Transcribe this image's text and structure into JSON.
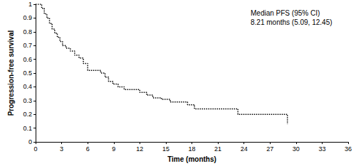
{
  "chart_data": {
    "type": "step",
    "x_label": "Time (months)",
    "y_label": "Progression-free survival",
    "annotation": [
      "Median PFS (95% CI)",
      "8.21 months (5.09, 12.45)"
    ],
    "x": [
      0,
      0.7,
      1.0,
      1.3,
      1.6,
      1.9,
      2.2,
      2.5,
      2.8,
      3.1,
      3.5,
      4.0,
      4.5,
      5.0,
      5.5,
      6.0,
      7.5,
      8.0,
      8.4,
      8.9,
      9.5,
      10.2,
      12.0,
      12.8,
      13.5,
      14.5,
      15.5,
      17.5,
      18.3,
      21.0,
      23.3,
      29.0
    ],
    "values": [
      1,
      0.97,
      0.93,
      0.9,
      0.86,
      0.82,
      0.79,
      0.76,
      0.73,
      0.7,
      0.68,
      0.66,
      0.63,
      0.61,
      0.57,
      0.52,
      0.5,
      0.47,
      0.44,
      0.42,
      0.4,
      0.38,
      0.36,
      0.34,
      0.32,
      0.31,
      0.29,
      0.27,
      0.24,
      0.24,
      0.2,
      0.13
    ],
    "color": "#000000",
    "line_style": "dotted",
    "xlim": [
      0,
      36
    ],
    "xticks": [
      0,
      3,
      6,
      9,
      12,
      15,
      18,
      21,
      24,
      27,
      30,
      33,
      36
    ],
    "ylim": [
      0,
      1
    ],
    "yticks": [
      0,
      0.1,
      0.2,
      0.3,
      0.4,
      0.5,
      0.6,
      0.7,
      0.8,
      0.9,
      1
    ],
    "grid": false
  }
}
